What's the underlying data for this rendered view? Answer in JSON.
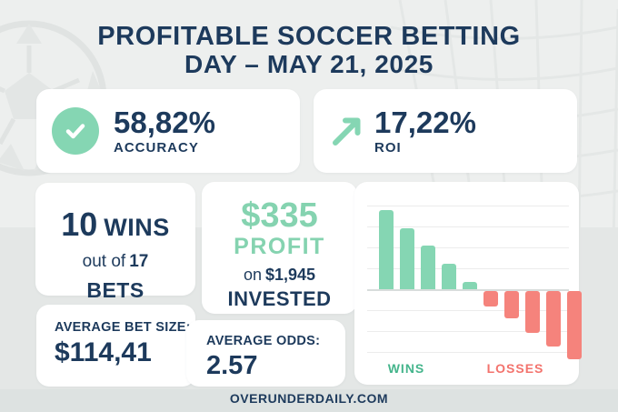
{
  "title": {
    "line1": "PROFITABLE SOCCER BETTING",
    "line2": "DAY – MAY 21, 2025"
  },
  "stats": {
    "accuracy": {
      "value": "58,82%",
      "label": "ACCURACY",
      "icon": "check-icon"
    },
    "roi": {
      "value": "17,22%",
      "label": "ROI",
      "icon": "trend-up-arrow-icon"
    }
  },
  "record": {
    "wins_count": "10",
    "wins_word": "WINS",
    "out_of_prefix": "out of",
    "total_bets": "17",
    "bets_word": "BETS"
  },
  "profit": {
    "amount": "$335",
    "label": "PROFIT",
    "on_prefix": "on",
    "invested_amount": "$1,945",
    "invested_word": "INVESTED"
  },
  "avg_bet": {
    "label": "AVERAGE BET SIZE:",
    "value": "$114,41"
  },
  "avg_odds": {
    "label": "AVERAGE ODDS:",
    "value": "2.57"
  },
  "footer": {
    "site": "OVERUNDERDAILY.COM"
  },
  "colors": {
    "navy": "#1d3a5c",
    "green": "#85d6b3",
    "green_text": "#85d3b0",
    "red": "#f5837c",
    "wins_label": "#45b58c",
    "losses_label": "#f3736d",
    "card": "#ffffff",
    "bg_top": "#edefee",
    "bg_bottom": "#e4e7e6"
  },
  "chart_data": {
    "type": "bar",
    "title": "",
    "xlabel": "",
    "ylabel": "",
    "axis_tick_labels": "none shown (stylized chart, values estimated in gridline units)",
    "gridline_count": 8,
    "baseline_index": 4,
    "grid": "horizontal lines on",
    "legend_position": "below axis as group labels",
    "groups": [
      {
        "name": "WINS",
        "color": "#85d6b3",
        "values": [
          3.8,
          2.9,
          2.1,
          1.2,
          0.35
        ]
      },
      {
        "name": "LOSSES",
        "color": "#f5837c",
        "values": [
          -0.75,
          -1.3,
          -2.0,
          -2.65,
          -3.25
        ]
      }
    ]
  }
}
